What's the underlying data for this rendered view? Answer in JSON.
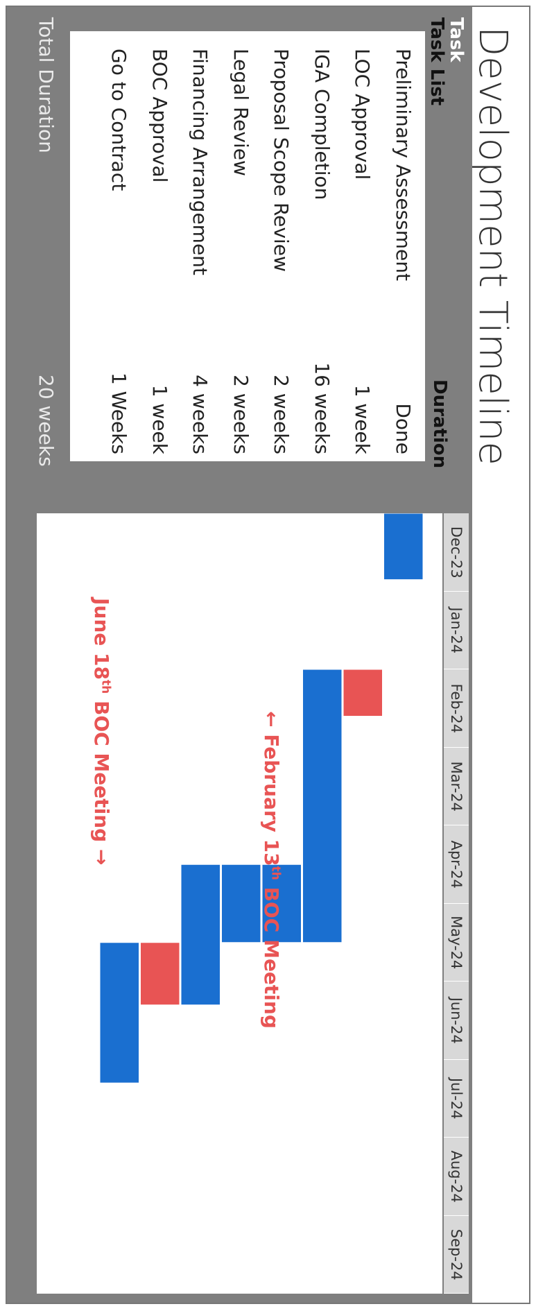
{
  "title": "Development Timeline",
  "table": {
    "header_task": "Task",
    "header_task_list": "Task List",
    "header_duration": "Duration",
    "footer_label": "Total Duration",
    "footer_value": "20 weeks"
  },
  "chart_data": {
    "type": "gantt",
    "categories": [
      "Preliminary Assessment",
      "LOC Approval",
      "IGA Completion",
      "Proposal Scope Review",
      "Legal Review",
      "Financing Arrangement",
      "BOC Approval",
      "Go to Contract"
    ],
    "durations": [
      "Done",
      "1 week",
      "16 weeks",
      "2 weeks",
      "2 weeks",
      "4 weeks",
      "1 week",
      "1 Weeks"
    ],
    "months": [
      "Dec-23",
      "Jan-24",
      "Feb-24",
      "Mar-24",
      "Apr-24",
      "May-24",
      "Jun-24",
      "Jul-24",
      "Aug-24",
      "Sep-24"
    ],
    "bars": [
      {
        "task": "Preliminary Assessment",
        "start": 0.0,
        "end": 0.85,
        "color": "#1a6fd0"
      },
      {
        "task": "LOC Approval",
        "start": 2.0,
        "end": 2.6,
        "color": "#e85454"
      },
      {
        "task": "IGA Completion",
        "start": 2.0,
        "end": 5.5,
        "color": "#1a6fd0"
      },
      {
        "task": "Proposal Scope Review",
        "start": 4.5,
        "end": 5.5,
        "color": "#1a6fd0"
      },
      {
        "task": "Legal Review",
        "start": 4.5,
        "end": 5.5,
        "color": "#1a6fd0"
      },
      {
        "task": "Financing Arrangement",
        "start": 4.5,
        "end": 6.3,
        "color": "#1a6fd0"
      },
      {
        "task": "BOC Approval",
        "start": 5.5,
        "end": 6.3,
        "color": "#e85454"
      },
      {
        "task": "Go to Contract",
        "start": 5.5,
        "end": 7.3,
        "color": "#1a6fd0"
      }
    ],
    "annotations": {
      "feb": {
        "prefix": "← February 13",
        "sup": "th",
        "suffix": " BOC Meeting"
      },
      "june": {
        "prefix": "June 18",
        "sup": "th",
        "suffix": " BOC Meeting →"
      }
    }
  }
}
